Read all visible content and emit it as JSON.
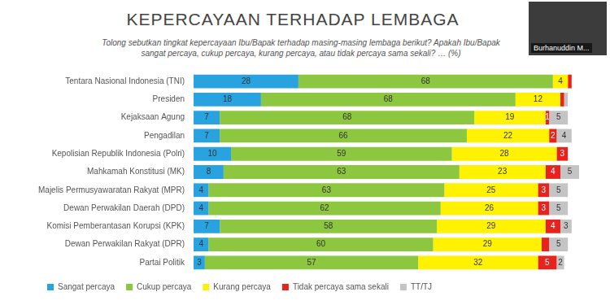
{
  "chart_data": {
    "type": "bar",
    "title": "KEPERCAYAAN TERHADAP LEMBAGA",
    "subtitle": "Tolong sebutkan tingkat kepercayaan Ibu/Bapak terhadap masing-masing lembaga berikut? Apakah Ibu/Bapak sangat percaya, cukup percaya, kurang percaya, atau tidak percaya sama sekali? … (%)",
    "annotations": [
      "Burhanuddin M..."
    ],
    "categories": [
      "Tentara Nasional Indonesia (TNI)",
      "Presiden",
      "Kejaksaan Agung",
      "Pengadilan",
      "Kepolisian Republik Indonesia (Polri)",
      "Mahkamah Konstitusi (MK)",
      "Majelis Permusyawaratan Rakyat (MPR)",
      "Dewan Perwakilan Daerah (DPD)",
      "Komisi Pemberantasan Korupsi (KPK)",
      "Dewan Perwakilan Rakyat (DPR)",
      "Partai Politik"
    ],
    "series": [
      {
        "name": "Sangat percaya",
        "color": "#29a3df",
        "values": [
          28,
          18,
          7,
          7,
          10,
          8,
          4,
          4,
          7,
          4,
          3
        ],
        "value_labels": [
          "28",
          "18",
          "7",
          "7",
          "10",
          "8",
          "4",
          "4",
          "7",
          "4",
          "3"
        ]
      },
      {
        "name": "Cukup percaya",
        "color": "#8dc63f",
        "values": [
          68,
          68,
          68,
          66,
          59,
          63,
          63,
          62,
          58,
          60,
          57
        ],
        "value_labels": [
          "68",
          "68",
          "68",
          "66",
          "59",
          "63",
          "63",
          "62",
          "58",
          "60",
          "57"
        ]
      },
      {
        "name": "Kurang percaya",
        "color": "#fff200",
        "values": [
          4,
          12,
          19,
          22,
          28,
          23,
          25,
          26,
          29,
          29,
          32
        ],
        "value_labels": [
          "4",
          "12",
          "19",
          "22",
          "28",
          "23",
          "25",
          "26",
          "29",
          "29",
          "32"
        ]
      },
      {
        "name": "Tidak percaya sama sekali",
        "color": "#e8221c",
        "values": [
          1,
          1,
          1,
          2,
          3,
          4,
          3,
          3,
          4,
          2,
          5
        ],
        "value_labels": [
          null,
          null,
          "1",
          "2",
          "3",
          "4",
          "3",
          "3",
          "4",
          null,
          "5"
        ]
      },
      {
        "name": "TT/TJ",
        "color": "#c4c4c4",
        "values": [
          0,
          1,
          5,
          4,
          0,
          5,
          5,
          5,
          3,
          5,
          2
        ],
        "value_labels": [
          null,
          null,
          "5",
          "4",
          null,
          "5",
          "5",
          "5",
          "3",
          "5",
          "2"
        ]
      }
    ],
    "xlim": [
      0,
      103
    ],
    "orientation": "horizontal",
    "stacked": true,
    "data_labels": true,
    "legend": "lower left",
    "grid": false,
    "tick_labels": "y"
  }
}
